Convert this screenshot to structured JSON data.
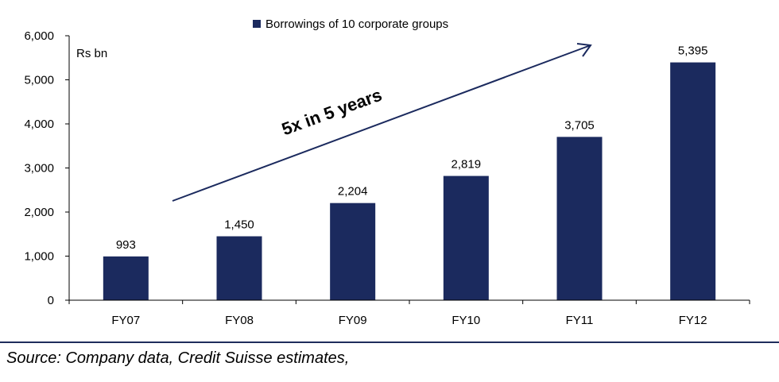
{
  "chart_data": {
    "type": "bar",
    "categories": [
      "FY07",
      "FY08",
      "FY09",
      "FY10",
      "FY11",
      "FY12"
    ],
    "series": [
      {
        "name": "Borrowings of 10 corporate groups",
        "values": [
          993,
          1450,
          2204,
          2819,
          3705,
          5395
        ],
        "labels": [
          "993",
          "1,450",
          "2,204",
          "2,819",
          "3,705",
          "5,395"
        ]
      }
    ],
    "ylabel": "Rs bn",
    "ylim": [
      0,
      6000
    ],
    "yticks": [
      0,
      1000,
      2000,
      3000,
      4000,
      5000,
      6000
    ],
    "ytick_labels": [
      "0",
      "1,000",
      "2,000",
      "3,000",
      "4,000",
      "5,000",
      "6,000"
    ],
    "annotation": "5x in 5 years",
    "legend_position": "top-center",
    "bar_color": "#1b2a5e",
    "grid": false
  },
  "source_text": "Source: Company data, Credit Suisse estimates,"
}
